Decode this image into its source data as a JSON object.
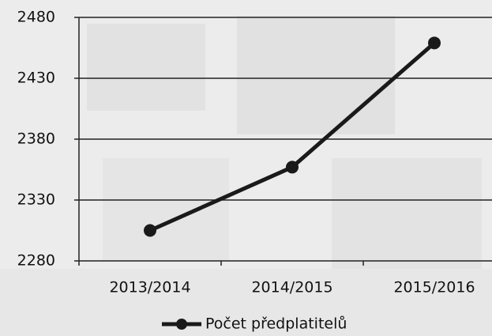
{
  "chart_data": {
    "type": "line",
    "categories": [
      "2013/2014",
      "2014/2015",
      "2015/2016"
    ],
    "series": [
      {
        "name": "Počet předplatitelů",
        "color": "#1a1a1a",
        "values": [
          2305,
          2357,
          2459
        ]
      }
    ],
    "ylim": [
      2280,
      2480
    ],
    "yticks": [
      2280,
      2330,
      2380,
      2430,
      2480
    ],
    "grid": true,
    "legend": "bottom"
  }
}
